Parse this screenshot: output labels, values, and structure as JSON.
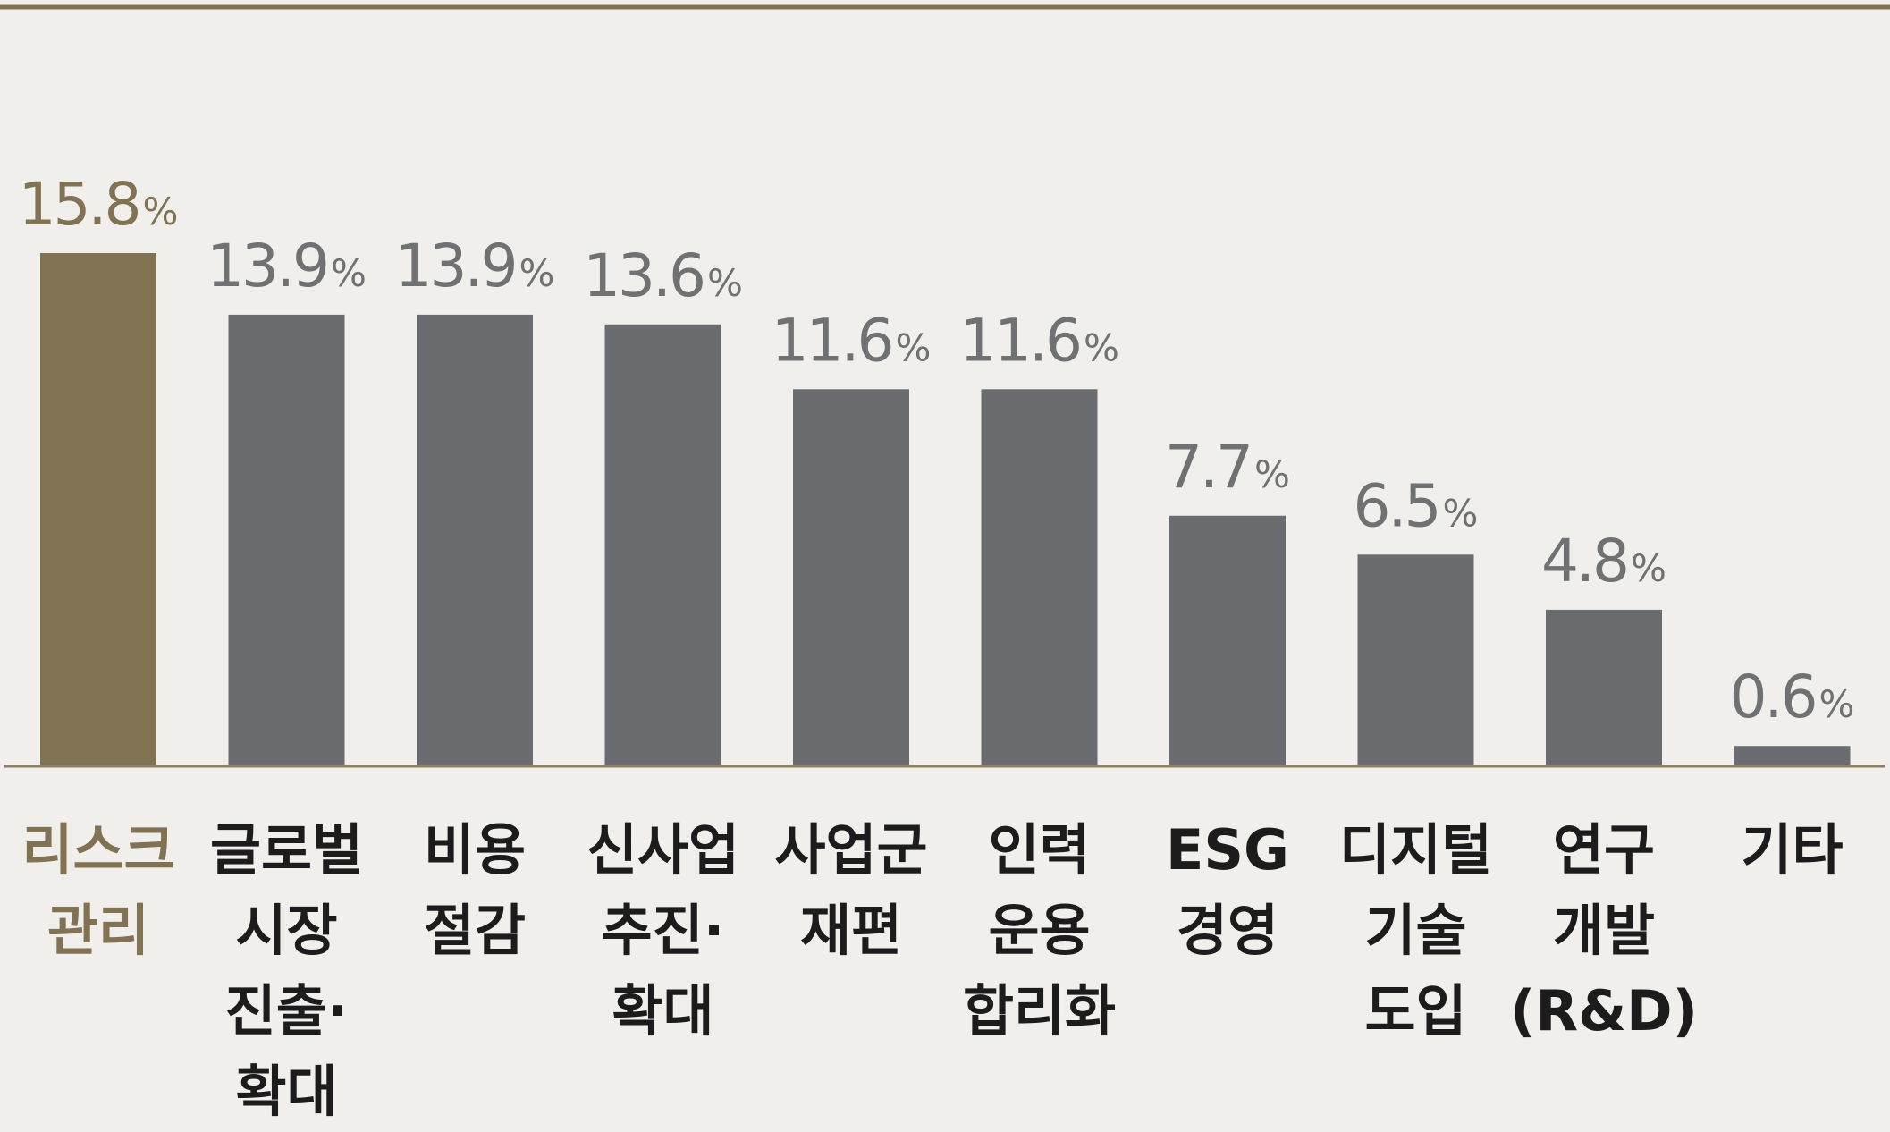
{
  "chart_data": {
    "type": "bar",
    "categories": [
      [
        "리스크",
        "관리"
      ],
      [
        "글로벌",
        "시장",
        "진출·",
        "확대"
      ],
      [
        "비용",
        "절감"
      ],
      [
        "신사업",
        "추진·",
        "확대"
      ],
      [
        "사업군",
        "재편"
      ],
      [
        "인력",
        "운용",
        "합리화"
      ],
      [
        "ESG",
        "경영"
      ],
      [
        "디지털",
        "기술",
        "도입"
      ],
      [
        "연구",
        "개발",
        "(R&D)"
      ],
      [
        "기타"
      ]
    ],
    "values": [
      15.8,
      13.9,
      13.9,
      13.6,
      11.6,
      11.6,
      7.7,
      6.5,
      4.8,
      0.6
    ],
    "value_labels": [
      "15.8",
      "13.9",
      "13.9",
      "13.6",
      "11.6",
      "11.6",
      "7.7",
      "6.5",
      "4.8",
      "0.6"
    ],
    "unit": "%",
    "ylim": [
      0,
      20
    ],
    "grid": false,
    "highlight_index": 0
  },
  "colors": {
    "background": "#f0efeb",
    "highlight": "#807252",
    "bar": "#6b6c6f",
    "value_text": "#707173",
    "category_text": "#1c1c1c",
    "rule": "#807252",
    "axis": "#8a8065"
  }
}
